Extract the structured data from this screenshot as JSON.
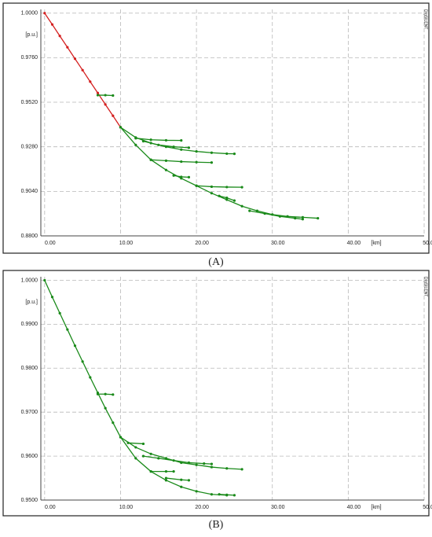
{
  "chart_data": [
    {
      "type": "line",
      "caption": "(A)",
      "watermark": "DIgSILENT",
      "y_label": "[p.u.]",
      "x_label": "[km]",
      "grid": true,
      "xlim": [
        -0.5,
        50
      ],
      "ylim": [
        0.88,
        1.002
      ],
      "xticks": [
        {
          "value": 0,
          "label": "0.00"
        },
        {
          "value": 10,
          "label": "10.00"
        },
        {
          "value": 20,
          "label": "20.00"
        },
        {
          "value": 30,
          "label": "30.00"
        },
        {
          "value": 40,
          "label": "40.00"
        },
        {
          "value": 50,
          "label": "50.00"
        }
      ],
      "yticks": [
        {
          "value": 0.88,
          "label": "0.8800"
        },
        {
          "value": 0.904,
          "label": "0.9040"
        },
        {
          "value": 0.928,
          "label": "0.9280"
        },
        {
          "value": 0.952,
          "label": "0.9520"
        },
        {
          "value": 0.976,
          "label": "0.9760"
        },
        {
          "value": 1,
          "label": "1.0000"
        }
      ],
      "series": [
        {
          "color": "#d42020",
          "x": [
            0,
            1,
            2,
            3,
            4,
            5,
            6,
            7,
            8,
            9,
            10
          ],
          "values": [
            1.0,
            0.9939,
            0.9877,
            0.9816,
            0.9754,
            0.9693,
            0.9631,
            0.957,
            0.9508,
            0.9447,
            0.9385
          ]
        },
        {
          "color": "#1a8a1a",
          "x": [
            7,
            8,
            9
          ],
          "values": [
            0.9558,
            0.9558,
            0.9556
          ]
        },
        {
          "color": "#1a8a1a",
          "x": [
            10,
            12,
            14,
            16,
            18,
            20,
            22,
            24,
            26,
            28,
            30,
            32,
            34,
            36
          ],
          "values": [
            0.9385,
            0.929,
            0.921,
            0.9155,
            0.911,
            0.907,
            0.903,
            0.8995,
            0.896,
            0.8935,
            0.8915,
            0.8905,
            0.89,
            0.8895
          ]
        },
        {
          "color": "#1a8a1a",
          "x": [
            10,
            12,
            14,
            16,
            18,
            20,
            22,
            24,
            25
          ],
          "values": [
            0.9385,
            0.933,
            0.93,
            0.928,
            0.9265,
            0.9255,
            0.9248,
            0.9243,
            0.9242
          ]
        },
        {
          "color": "#1a8a1a",
          "x": [
            14,
            16,
            18,
            20,
            22
          ],
          "values": [
            0.921,
            0.9205,
            0.92,
            0.9197,
            0.9195
          ]
        },
        {
          "color": "#1a8a1a",
          "x": [
            20,
            22,
            24,
            26
          ],
          "values": [
            0.907,
            0.9065,
            0.9063,
            0.9062
          ]
        },
        {
          "color": "#1a8a1a",
          "x": [
            12,
            14,
            16,
            18
          ],
          "values": [
            0.9326,
            0.9318,
            0.9315,
            0.9314
          ]
        },
        {
          "color": "#1a8a1a",
          "x": [
            13,
            15,
            17,
            19
          ],
          "values": [
            0.931,
            0.929,
            0.928,
            0.9275
          ]
        },
        {
          "color": "#1a8a1a",
          "x": [
            17,
            18,
            19
          ],
          "values": [
            0.9125,
            0.9118,
            0.9116
          ]
        },
        {
          "color": "#1a8a1a",
          "x": [
            23,
            24,
            25
          ],
          "values": [
            0.9015,
            0.9005,
            0.899
          ]
        },
        {
          "color": "#1a8a1a",
          "x": [
            27,
            29,
            31,
            33,
            34
          ],
          "values": [
            0.8935,
            0.892,
            0.8905,
            0.8895,
            0.889
          ]
        }
      ]
    },
    {
      "type": "line",
      "caption": "(B)",
      "watermark": "DIgSILENT",
      "y_label": "[p.u.]",
      "x_label": "[km]",
      "grid": true,
      "xlim": [
        -0.5,
        50
      ],
      "ylim": [
        0.95,
        1.0008
      ],
      "xticks": [
        {
          "value": 0,
          "label": "0.00"
        },
        {
          "value": 10,
          "label": "10.00"
        },
        {
          "value": 20,
          "label": "20.00"
        },
        {
          "value": 30,
          "label": "30.00"
        },
        {
          "value": 40,
          "label": "40.00"
        },
        {
          "value": 50,
          "label": "50.00"
        }
      ],
      "yticks": [
        {
          "value": 0.95,
          "label": "0.9500"
        },
        {
          "value": 0.96,
          "label": "0.9600"
        },
        {
          "value": 0.97,
          "label": "0.9700"
        },
        {
          "value": 0.98,
          "label": "0.9800"
        },
        {
          "value": 0.99,
          "label": "0.9900"
        },
        {
          "value": 1,
          "label": "1.0000"
        }
      ],
      "series": [
        {
          "color": "#1a8a1a",
          "x": [
            0,
            1,
            2,
            3,
            4,
            5,
            6,
            7,
            8,
            9,
            10
          ],
          "values": [
            1.0,
            0.9962,
            0.9925,
            0.9888,
            0.9851,
            0.9815,
            0.9779,
            0.9744,
            0.9709,
            0.9676,
            0.9643
          ]
        },
        {
          "color": "#1a8a1a",
          "x": [
            7,
            8,
            9
          ],
          "values": [
            0.9741,
            0.9741,
            0.974
          ]
        },
        {
          "color": "#1a8a1a",
          "x": [
            10,
            12,
            14,
            16,
            18,
            20,
            22,
            24
          ],
          "values": [
            0.9643,
            0.9595,
            0.9565,
            0.9545,
            0.953,
            0.952,
            0.9513,
            0.9511
          ]
        },
        {
          "color": "#1a8a1a",
          "x": [
            10,
            12,
            14,
            16,
            18,
            20,
            22,
            24,
            26
          ],
          "values": [
            0.9643,
            0.962,
            0.9605,
            0.9595,
            0.9585,
            0.958,
            0.9575,
            0.9572,
            0.957
          ]
        },
        {
          "color": "#1a8a1a",
          "x": [
            13,
            15,
            17,
            19,
            21,
            22
          ],
          "values": [
            0.96,
            0.9595,
            0.959,
            0.9585,
            0.9583,
            0.9582
          ]
        },
        {
          "color": "#1a8a1a",
          "x": [
            11,
            13
          ],
          "values": [
            0.963,
            0.9628
          ]
        },
        {
          "color": "#1a8a1a",
          "x": [
            14,
            16,
            17
          ],
          "values": [
            0.9565,
            0.9565,
            0.9565
          ]
        },
        {
          "color": "#1a8a1a",
          "x": [
            16,
            18,
            19
          ],
          "values": [
            0.955,
            0.9546,
            0.9545
          ]
        },
        {
          "color": "#1a8a1a",
          "x": [
            23,
            24,
            25
          ],
          "values": [
            0.9513,
            0.9512,
            0.9511
          ]
        }
      ]
    }
  ]
}
